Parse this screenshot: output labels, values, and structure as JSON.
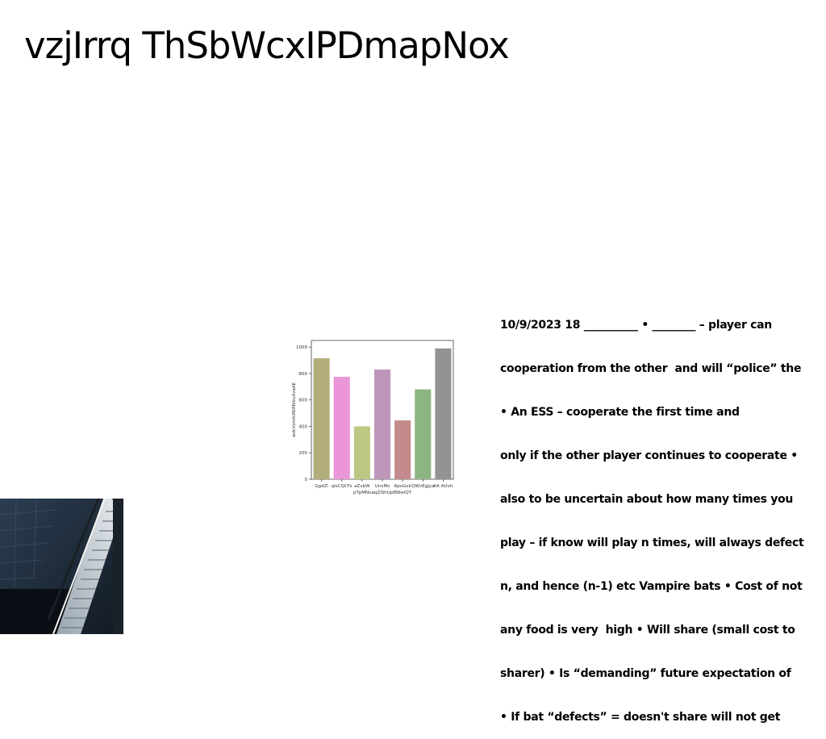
{
  "slide": {
    "title": "vzjIrrq ThSbWcxIPDmapNox",
    "body_lines": [
      "10/9/2023 18 __________ • ________ – player can",
      "cooperation from the other  and will “police” the",
      "• An ESS – cooperate the first time and",
      "only if the other player continues to cooperate •",
      "also to be uncertain about how many times you",
      "play – if know will play n times, will always defect",
      "n, and hence (n-1) etc Vampire bats • Cost of not",
      "any food is very  high • Will share (small cost to",
      "sharer) • Is “demanding” future expectation of",
      "• If bat “defects” = doesn't share will not get"
    ]
  },
  "chart_data": {
    "type": "bar",
    "title": "",
    "xlabel": "pTpMNuaqZlShUpBWwiQT",
    "ylabel": "wdcVzmfcRDNVeuXvaAE",
    "ylim": [
      0,
      1050
    ],
    "yticks": [
      0,
      200,
      400,
      600,
      800,
      1000
    ],
    "categories": [
      "GgdZl",
      "qlsCQCFs",
      "aZvbW",
      "UnvMs",
      "ApxGxk",
      "QWvEgJya",
      "KA AUvh"
    ],
    "values": [
      915,
      775,
      400,
      830,
      445,
      680,
      990
    ],
    "colors": [
      "#b1ae7a",
      "#ec96da",
      "#bdc884",
      "#be96b9",
      "#c38b8b",
      "#8db582",
      "#939393"
    ]
  }
}
